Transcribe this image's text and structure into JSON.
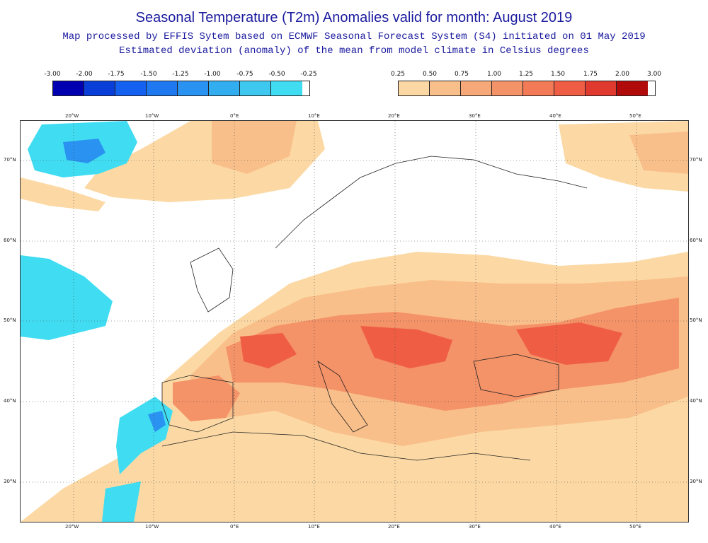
{
  "header": {
    "title": "Seasonal Temperature (T2m) Anomalies valid for month: August 2019",
    "subtitle1": "Map processed by EFFIS Sytem based on ECMWF Seasonal Forecast System (S4) initiated on 01 May 2019",
    "subtitle2": "Estimated deviation (anomaly) of the mean from model climate in Celsius degrees"
  },
  "legend_cold": {
    "labels": [
      "-3.00",
      "-2.00",
      "-1.75",
      "-1.50",
      "-1.25",
      "-1.00",
      "-0.75",
      "-0.50",
      "-0.25"
    ],
    "colors": [
      "#0000b0",
      "#0a3ed8",
      "#1460f0",
      "#1e78f0",
      "#2a92f0",
      "#32aef0",
      "#3ec8f0",
      "#40dcf2"
    ]
  },
  "legend_warm": {
    "labels": [
      "0.25",
      "0.50",
      "0.75",
      "1.00",
      "1.25",
      "1.50",
      "1.75",
      "2.00",
      "3.00"
    ],
    "colors": [
      "#fcd9a4",
      "#f9bf8a",
      "#f7a878",
      "#f49268",
      "#f27a56",
      "#ef5e44",
      "#e03a2e",
      "#b00a0a"
    ]
  },
  "map": {
    "lon_labels": [
      "20°W",
      "10°W",
      "0°E",
      "10°E",
      "20°E",
      "30°E",
      "40°E",
      "50°E"
    ],
    "lat_labels": [
      "70°N",
      "60°N",
      "50°N",
      "40°N",
      "30°N"
    ],
    "colors": {
      "ocean": "#ffffff",
      "warm1": "#fcd9a4",
      "warm2": "#f9bf8a",
      "warm3": "#f49268",
      "warm4": "#ef5e44",
      "cold1": "#40dcf2",
      "cold2": "#3ec8f0",
      "cold3": "#2a92f0",
      "coast": "#222222",
      "grid": "#444444"
    }
  }
}
